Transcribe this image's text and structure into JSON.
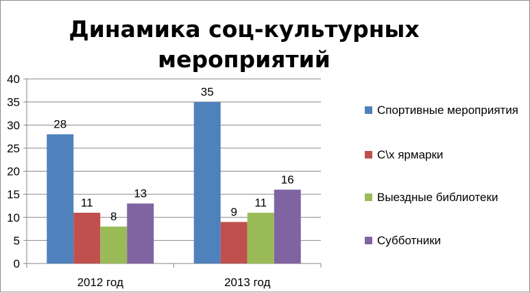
{
  "chart_data": {
    "type": "bar",
    "title": "Динамика соц-культурных мероприятий",
    "categories": [
      "2012 год",
      "2013 год"
    ],
    "series": [
      {
        "name": "Спортивные мероприятия",
        "values": [
          28,
          35
        ],
        "color": "#4f81bd"
      },
      {
        "name": "С\\х ярмарки",
        "values": [
          11,
          9
        ],
        "color": "#c0504d"
      },
      {
        "name": "Выездные библиотеки",
        "values": [
          8,
          11
        ],
        "color": "#9bbb59"
      },
      {
        "name": "Субботники",
        "values": [
          13,
          16
        ],
        "color": "#8064a2"
      }
    ],
    "ylim": [
      0,
      40
    ],
    "yticks": [
      "0",
      "5",
      "10",
      "15",
      "20",
      "25",
      "30",
      "35",
      "40"
    ],
    "grid": true,
    "legend_position": "right",
    "data_labels": true
  }
}
